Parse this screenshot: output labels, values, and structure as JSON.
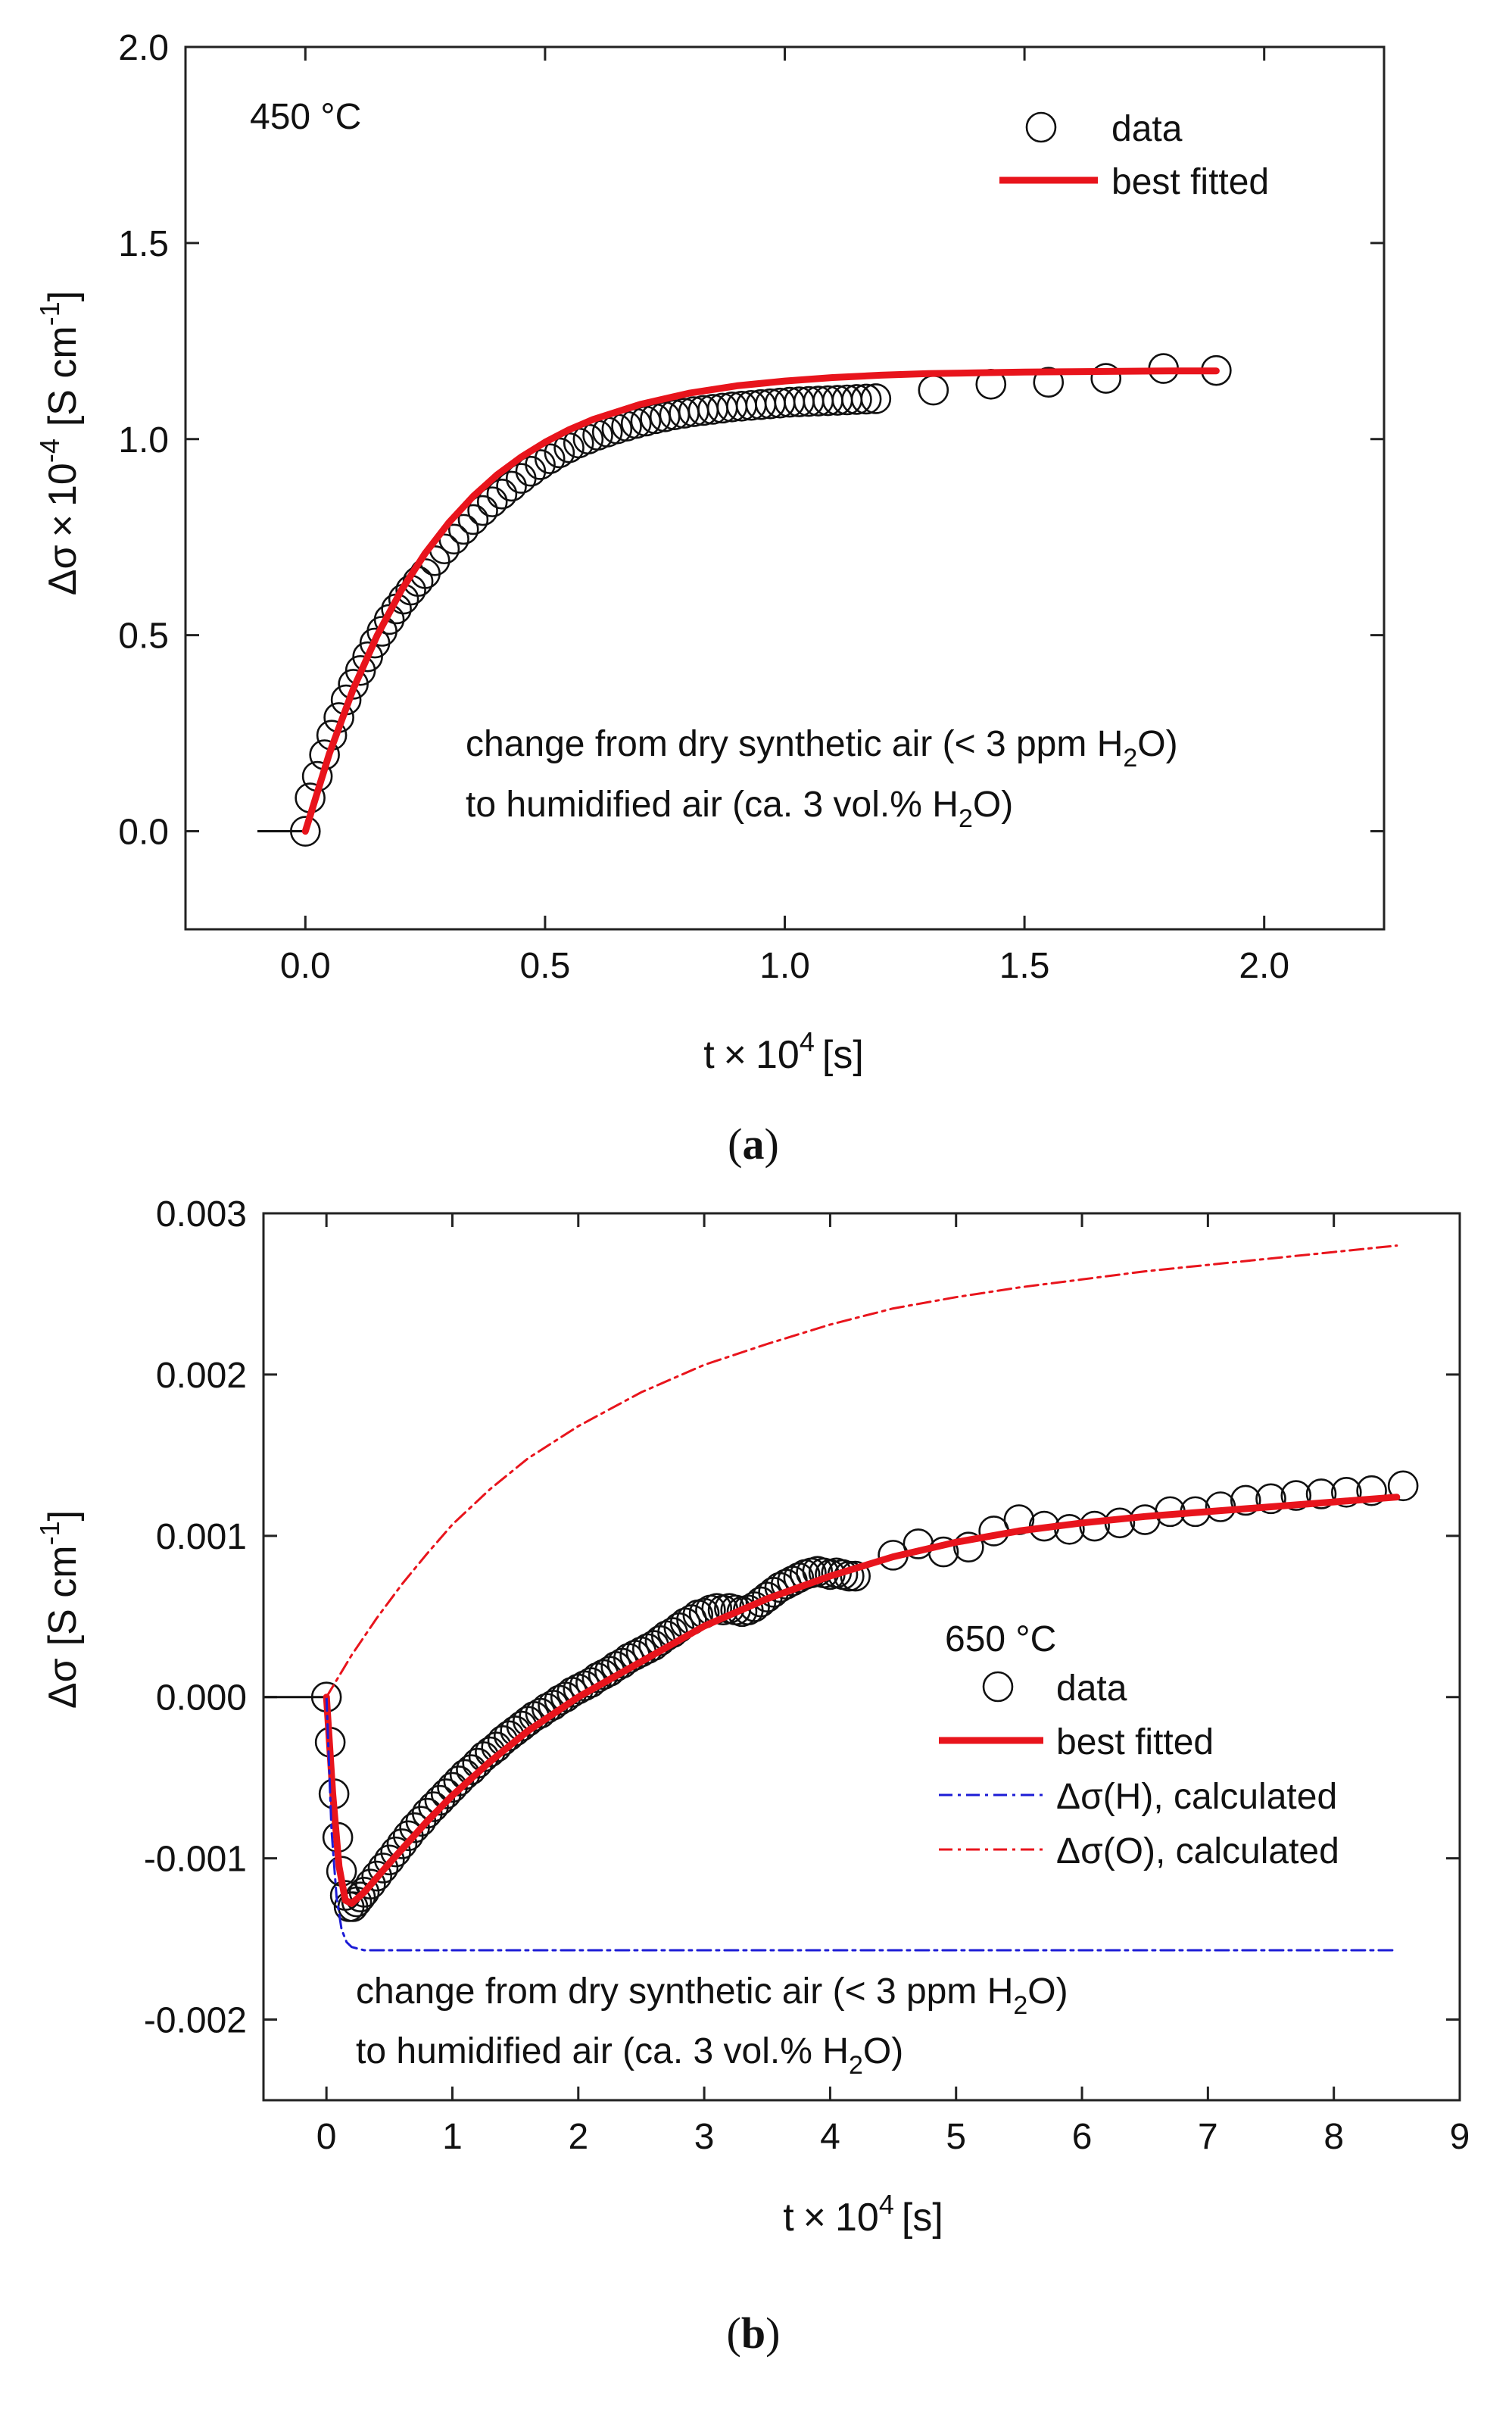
{
  "chart_data": [
    {
      "panel": "a",
      "type": "scatter",
      "caption_open": "(",
      "caption_letter": "a",
      "caption_close": ")",
      "xlabel": {
        "prefix": "t",
        "times": "×",
        "base": "10",
        "exp": "4",
        "unit": "[s]"
      },
      "ylabel": {
        "prefix": "Δσ",
        "times": "×",
        "base": "10",
        "exp": "-4",
        "unit_open": "[S cm",
        "unit_exp": "-1",
        "unit_close": "]"
      },
      "xlim": [
        -0.25,
        2.25
      ],
      "ylim": [
        -0.25,
        2.0
      ],
      "xticks": [
        0.0,
        0.5,
        1.0,
        1.5,
        2.0
      ],
      "xtick_labels": [
        "0.0",
        "0.5",
        "1.0",
        "1.5",
        "2.0"
      ],
      "yticks": [
        0.0,
        0.5,
        1.0,
        1.5,
        2.0
      ],
      "ytick_labels": [
        "0.0",
        "0.5",
        "1.0",
        "1.5",
        "2.0"
      ],
      "temperature_label": "450 °C",
      "annotation": {
        "line1_main": "change from dry synthetic air (< 3 ppm H",
        "line1_sub": "2",
        "line1_end": "O)",
        "line2_main": "to humidified air (ca. 3 vol.% H",
        "line2_sub": "2",
        "line2_end": "O)"
      },
      "baseline": {
        "x": [
          -0.1,
          0.0
        ],
        "y": [
          0.0,
          0.0
        ]
      },
      "legend": {
        "position": "top-right",
        "entries": [
          "data",
          "best fitted"
        ]
      },
      "series": [
        {
          "name": "data",
          "kind": "markers",
          "color": "#111111",
          "x": [
            0.0,
            0.01,
            0.025,
            0.04,
            0.055,
            0.07,
            0.085,
            0.1,
            0.115,
            0.13,
            0.145,
            0.16,
            0.175,
            0.19,
            0.205,
            0.22,
            0.235,
            0.25,
            0.27,
            0.29,
            0.31,
            0.33,
            0.35,
            0.37,
            0.39,
            0.41,
            0.43,
            0.45,
            0.47,
            0.49,
            0.51,
            0.53,
            0.55,
            0.57,
            0.59,
            0.61,
            0.63,
            0.65,
            0.67,
            0.69,
            0.71,
            0.73,
            0.75,
            0.77,
            0.79,
            0.81,
            0.83,
            0.85,
            0.87,
            0.89,
            0.91,
            0.93,
            0.95,
            0.97,
            0.99,
            1.01,
            1.03,
            1.05,
            1.07,
            1.09,
            1.11,
            1.13,
            1.15,
            1.17,
            1.19,
            1.31,
            1.43,
            1.55,
            1.67,
            1.79,
            1.9
          ],
          "y": [
            0.0,
            0.085,
            0.14,
            0.195,
            0.245,
            0.29,
            0.335,
            0.375,
            0.41,
            0.445,
            0.48,
            0.51,
            0.54,
            0.567,
            0.592,
            0.615,
            0.637,
            0.657,
            0.69,
            0.72,
            0.745,
            0.77,
            0.795,
            0.818,
            0.84,
            0.86,
            0.88,
            0.9,
            0.918,
            0.935,
            0.95,
            0.965,
            0.978,
            0.99,
            1.0,
            1.01,
            1.018,
            1.026,
            1.033,
            1.04,
            1.046,
            1.052,
            1.057,
            1.062,
            1.066,
            1.07,
            1.073,
            1.076,
            1.079,
            1.082,
            1.084,
            1.086,
            1.088,
            1.09,
            1.092,
            1.094,
            1.095,
            1.096,
            1.097,
            1.098,
            1.099,
            1.1,
            1.101,
            1.102,
            1.103,
            1.125,
            1.14,
            1.145,
            1.155,
            1.18,
            1.175
          ]
        },
        {
          "name": "best fitted",
          "kind": "line",
          "color": "#e8141c",
          "x": [
            0.0,
            0.05,
            0.1,
            0.15,
            0.2,
            0.25,
            0.3,
            0.35,
            0.4,
            0.45,
            0.5,
            0.55,
            0.6,
            0.7,
            0.8,
            0.9,
            1.0,
            1.1,
            1.2,
            1.3,
            1.4,
            1.5,
            1.6,
            1.7,
            1.8,
            1.9
          ],
          "y": [
            0.0,
            0.198,
            0.363,
            0.5,
            0.614,
            0.709,
            0.788,
            0.854,
            0.909,
            0.954,
            0.992,
            1.024,
            1.05,
            1.089,
            1.117,
            1.136,
            1.148,
            1.157,
            1.163,
            1.167,
            1.169,
            1.171,
            1.172,
            1.173,
            1.174,
            1.174
          ]
        }
      ]
    },
    {
      "panel": "b",
      "type": "scatter",
      "caption_open": "(",
      "caption_letter": "b",
      "caption_close": ")",
      "xlabel": {
        "prefix": "t",
        "times": "×",
        "base": "10",
        "exp": "4",
        "unit": "[s]"
      },
      "ylabel": {
        "prefix": "Δσ",
        "unit_open": "[S cm",
        "unit_exp": "-1",
        "unit_close": "]"
      },
      "xlim": [
        -0.5,
        9.0
      ],
      "ylim": [
        -0.0025,
        0.003
      ],
      "xticks": [
        0,
        1,
        2,
        3,
        4,
        5,
        6,
        7,
        8,
        9
      ],
      "xtick_labels": [
        "0",
        "1",
        "2",
        "3",
        "4",
        "5",
        "6",
        "7",
        "8",
        "9"
      ],
      "yticks": [
        -0.002,
        -0.001,
        0.0,
        0.001,
        0.002,
        0.003
      ],
      "ytick_labels": [
        "-0.002",
        "-0.001",
        "0.000",
        "0.001",
        "0.002",
        "0.003"
      ],
      "temperature_label": "650 °C",
      "annotation": {
        "line1_main": "change from dry synthetic air (< 3 ppm H",
        "line1_sub": "2",
        "line1_end": "O)",
        "line2_main": "to humidified air (ca. 3 vol.% H",
        "line2_sub": "2",
        "line2_end": "O)"
      },
      "baseline": {
        "x": [
          -0.5,
          0.0
        ],
        "y": [
          0.0,
          0.0
        ]
      },
      "legend": {
        "position": "right",
        "entries": [
          "data",
          "best fitted",
          "Δσ(H), calculated",
          "Δσ(O), calculated"
        ]
      },
      "series": [
        {
          "name": "data",
          "kind": "markers",
          "color": "#111111",
          "x": [
            0.0,
            0.03,
            0.06,
            0.09,
            0.12,
            0.15,
            0.18,
            0.21,
            0.24,
            0.27,
            0.3,
            0.35,
            0.4,
            0.45,
            0.5,
            0.55,
            0.6,
            0.65,
            0.7,
            0.75,
            0.8,
            0.85,
            0.9,
            0.95,
            1.0,
            1.05,
            1.1,
            1.15,
            1.2,
            1.25,
            1.3,
            1.35,
            1.4,
            1.45,
            1.5,
            1.55,
            1.6,
            1.65,
            1.7,
            1.75,
            1.8,
            1.85,
            1.9,
            1.95,
            2.0,
            2.05,
            2.1,
            2.15,
            2.2,
            2.25,
            2.3,
            2.35,
            2.4,
            2.45,
            2.5,
            2.55,
            2.6,
            2.65,
            2.7,
            2.75,
            2.8,
            2.85,
            2.9,
            2.95,
            3.0,
            3.05,
            3.1,
            3.15,
            3.2,
            3.25,
            3.3,
            3.35,
            3.4,
            3.45,
            3.5,
            3.55,
            3.6,
            3.65,
            3.7,
            3.75,
            3.8,
            3.85,
            3.9,
            3.95,
            4.0,
            4.05,
            4.1,
            4.15,
            4.2,
            4.5,
            4.7,
            4.9,
            5.1,
            5.3,
            5.5,
            5.7,
            5.9,
            6.1,
            6.3,
            6.5,
            6.7,
            6.9,
            7.1,
            7.3,
            7.5,
            7.7,
            7.9,
            8.1,
            8.3,
            8.55
          ],
          "y": [
            0.0,
            -0.00028,
            -0.0006,
            -0.00087,
            -0.00108,
            -0.00123,
            -0.0013,
            -0.0013,
            -0.00127,
            -0.00124,
            -0.00121,
            -0.00116,
            -0.00111,
            -0.00106,
            -0.00101,
            -0.00096,
            -0.00091,
            -0.00086,
            -0.00081,
            -0.00077,
            -0.00072,
            -0.00068,
            -0.00064,
            -0.0006,
            -0.00056,
            -0.00052,
            -0.00048,
            -0.00045,
            -0.00041,
            -0.00037,
            -0.00034,
            -0.00031,
            -0.00027,
            -0.00024,
            -0.00021,
            -0.00018,
            -0.00015,
            -0.00012,
            -0.0001,
            -7e-05,
            -5e-05,
            -2e-05,
            0.0,
            3e-05,
            5e-05,
            7e-05,
            9e-05,
            0.00012,
            0.00014,
            0.00016,
            0.00019,
            0.00021,
            0.00024,
            0.00026,
            0.00028,
            0.0003,
            0.00032,
            0.00035,
            0.00038,
            0.0004,
            0.00043,
            0.00046,
            0.00048,
            0.00051,
            0.00052,
            0.00054,
            0.00055,
            0.00054,
            0.00055,
            0.00054,
            0.00053,
            0.00054,
            0.00056,
            0.00059,
            0.00062,
            0.00065,
            0.00068,
            0.0007,
            0.00072,
            0.00074,
            0.00076,
            0.00077,
            0.00078,
            0.00077,
            0.00076,
            0.00077,
            0.00076,
            0.00075,
            0.00075,
            0.00088,
            0.00095,
            0.0009,
            0.00093,
            0.00103,
            0.0011,
            0.00106,
            0.00104,
            0.00106,
            0.00108,
            0.0011,
            0.00115,
            0.00115,
            0.00118,
            0.00122,
            0.00123,
            0.00125,
            0.00126,
            0.00127,
            0.00128,
            0.00131
          ]
        },
        {
          "name": "best fitted",
          "kind": "line",
          "color": "#e8141c",
          "x": [
            0.0,
            0.05,
            0.1,
            0.15,
            0.2,
            0.3,
            0.5,
            0.8,
            1.0,
            1.3,
            1.6,
            2.0,
            2.5,
            3.0,
            3.5,
            4.0,
            4.5,
            5.0,
            5.5,
            6.0,
            6.5,
            7.0,
            7.5,
            8.0,
            8.5
          ],
          "y": [
            0.0,
            -0.0006,
            -0.00105,
            -0.00126,
            -0.00128,
            -0.00121,
            -0.00103,
            -0.00077,
            -0.00061,
            -0.0004,
            -0.00021,
            0.0,
            0.00022,
            0.00044,
            0.00061,
            0.00075,
            0.00087,
            0.00096,
            0.00103,
            0.00108,
            0.00112,
            0.00115,
            0.00118,
            0.00121,
            0.00124
          ]
        },
        {
          "name": "Δσ(H), calculated",
          "kind": "dashdot",
          "color": "#1c1cd6",
          "x": [
            0.0,
            0.04,
            0.08,
            0.12,
            0.16,
            0.2,
            0.25,
            0.3,
            0.4,
            0.6,
            1.0,
            2.0,
            4.0,
            6.0,
            8.5
          ],
          "y": [
            0.0,
            -0.00082,
            -0.00124,
            -0.00144,
            -0.00152,
            -0.00155,
            -0.00156,
            -0.00157,
            -0.00157,
            -0.00157,
            -0.00157,
            -0.00157,
            -0.00157,
            -0.00157,
            -0.00157
          ]
        },
        {
          "name": "Δσ(O), calculated",
          "kind": "dashdot",
          "color": "#e8141c",
          "x": [
            0.0,
            0.1,
            0.2,
            0.4,
            0.6,
            0.8,
            1.0,
            1.3,
            1.6,
            2.0,
            2.5,
            3.0,
            3.5,
            4.0,
            4.5,
            5.0,
            5.5,
            6.0,
            6.5,
            7.0,
            7.5,
            8.0,
            8.5
          ],
          "y": [
            0.0,
            0.00013,
            0.00026,
            0.00049,
            0.0007,
            0.00089,
            0.00107,
            0.00129,
            0.00148,
            0.00168,
            0.00189,
            0.00206,
            0.00219,
            0.00231,
            0.00241,
            0.00248,
            0.00254,
            0.00259,
            0.00264,
            0.00268,
            0.00272,
            0.00276,
            0.0028
          ]
        }
      ]
    }
  ]
}
